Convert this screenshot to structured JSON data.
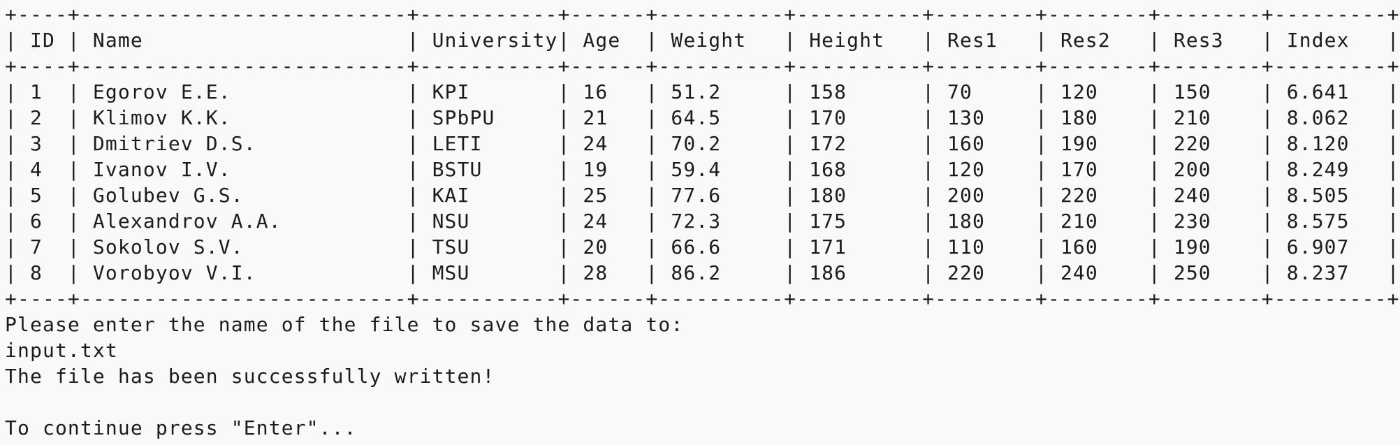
{
  "terminal": {
    "table": {
      "border_top": "+----+--------------------------+-----------+------+----------+----------+--------+--------+--------+---------+",
      "border_mid": "+----+--------------------------+-----------+------+----------+----------+--------+--------+--------+---------+",
      "border_bottom": "+----+--------------------------+-----------+------+----------+----------+--------+--------+--------+---------+",
      "header": "| ID | Name                     | University| Age  | Weight   | Height   | Res1   | Res2   | Res3   | Index   |",
      "rows": [
        "| 1  | Egorov E.E.              | KPI       | 16   | 51.2     | 158      | 70     | 120    | 150    | 6.641   |",
        "| 2  | Klimov K.K.              | SPbPU     | 21   | 64.5     | 170      | 130    | 180    | 210    | 8.062   |",
        "| 3  | Dmitriev D.S.            | LETI      | 24   | 70.2     | 172      | 160    | 190    | 220    | 8.120   |",
        "| 4  | Ivanov I.V.              | BSTU      | 19   | 59.4     | 168      | 120    | 170    | 200    | 8.249   |",
        "| 5  | Golubev G.S.             | KAI       | 25   | 77.6     | 180      | 200    | 220    | 240    | 8.505   |",
        "| 6  | Alexandrov A.A.          | NSU       | 24   | 72.3     | 175      | 180    | 210    | 230    | 8.575   |",
        "| 7  | Sokolov S.V.             | TSU       | 20   | 66.6     | 171      | 110    | 160    | 190    | 6.907   |",
        "| 8  | Vorobyov V.I.            | MSU       | 28   | 86.2     | 186      | 220    | 240    | 250    | 8.237   |"
      ]
    },
    "prompt": "Please enter the name of the file to save the data to:",
    "input_value": "input.txt",
    "success_message": "The file has been successfully written!",
    "blank_line": "",
    "continue_message": "To continue press \"Enter\"..."
  }
}
